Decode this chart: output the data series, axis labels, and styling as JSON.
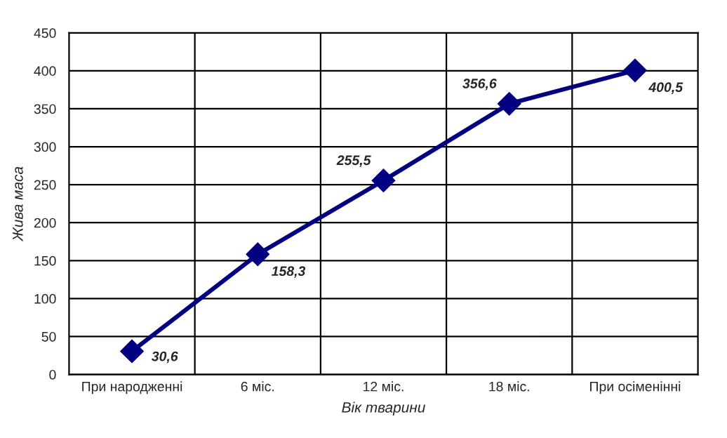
{
  "chart_data": {
    "type": "line",
    "xlabel": "Вік тварини",
    "ylabel": "Жива маса",
    "categories": [
      "При народженні",
      "6 міс.",
      "12 міс.",
      "18 міс.",
      "При осіменінні"
    ],
    "series": [
      {
        "color": "#000080",
        "values": [
          30.6,
          158.3,
          255.5,
          356.6,
          400.5
        ]
      }
    ],
    "value_labels": [
      "30,6",
      "158,3",
      "255,5",
      "356,6",
      "400,5"
    ],
    "ylim": [
      0,
      450
    ],
    "yticks": [
      0,
      50,
      100,
      150,
      200,
      250,
      300,
      350,
      400,
      450
    ],
    "grid": true,
    "marker": "diamond",
    "line_style": "solid",
    "legend": false
  }
}
